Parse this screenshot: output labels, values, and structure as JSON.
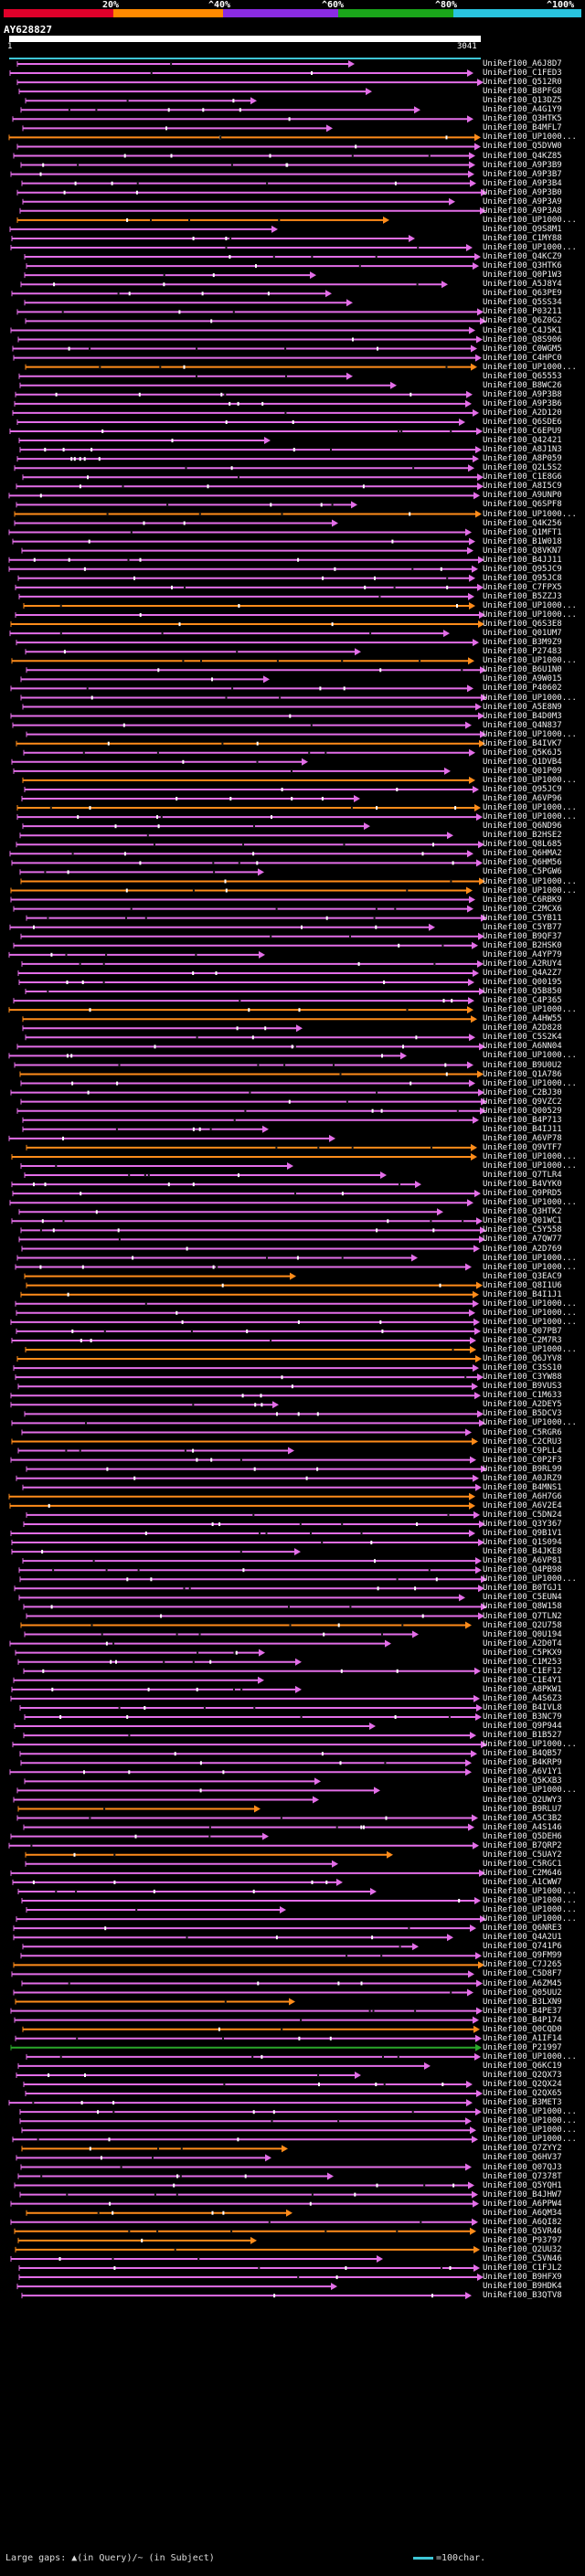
{
  "header": {
    "scale_labels": [
      "20%",
      "^40%",
      "^60%",
      "^80%",
      "^100%"
    ],
    "scale_colors": [
      "#e0002a",
      "#ff8a00",
      "#8a2be2",
      "#1aa51a",
      "#29c4e0"
    ],
    "query_id": "AY628827",
    "query_start": "1",
    "query_end": "3041"
  },
  "colors": {
    "high_identity": "#e36ee8",
    "mid_identity": "#ff8c1a",
    "low_identity": "#2aa82a",
    "query_line": "#3ec6d6",
    "query_bar": "#ffffff"
  },
  "hits": [
    "UniRef100_A6J8D7",
    "UniRef100_C1FED3",
    "UniRef100_Q512R0",
    "UniRef100_B8PFG8",
    "UniRef100_Q13DZ5",
    "UniRef100_A4G1Y9",
    "UniRef100_Q3HTK5",
    "UniRef100_B4MFL7",
    "UniRef100_UP1000...",
    "UniRef100_Q5DVW0",
    "UniRef100_Q4KZ85",
    "UniRef100_A9P3B9",
    "UniRef100_A9P3B7",
    "UniRef100_A9P3B4",
    "UniRef100_A9P3B0",
    "UniRef100_A9P3A9",
    "UniRef100_A9P3A8",
    "UniRef100_UP1000...",
    "UniRef100_Q9S8M1",
    "UniRef100_C1MY88",
    "UniRef100_UP1000...",
    "UniRef100_Q4KCZ9",
    "UniRef100_Q3HTK6",
    "UniRef100_Q0P1W3",
    "UniRef100_A5J8Y4",
    "UniRef100_Q63PE9",
    "UniRef100_Q5SS34",
    "UniRef100_P03211",
    "UniRef100_Q6Z0G2",
    "UniRef100_C4J5K1",
    "UniRef100_Q8S906",
    "UniRef100_C0WGM5",
    "UniRef100_C4HPC0",
    "UniRef100_UP1000...",
    "UniRef100_Q65553",
    "UniRef100_B8WC26",
    "UniRef100_A9P3B8",
    "UniRef100_A9P3B6",
    "UniRef100_A2D120",
    "UniRef100_Q6SDE6",
    "UniRef100_C6EPU9",
    "UniRef100_Q42421",
    "UniRef100_A8J1N3",
    "UniRef100_A8P059",
    "UniRef100_Q2L5S2",
    "UniRef100_C1E8G6",
    "UniRef100_A8I5C9",
    "UniRef100_A9UNP0",
    "UniRef100_Q6SPF8",
    "UniRef100_UP1000...",
    "UniRef100_Q4K256",
    "UniRef100_Q1MFT1",
    "UniRef100_B1W018",
    "UniRef100_Q8VKN7",
    "UniRef100_B4JJ11",
    "UniRef100_Q95JC9",
    "UniRef100_Q95JC8",
    "UniRef100_C7FPX5",
    "UniRef100_B5ZZJ3",
    "UniRef100_UP1000...",
    "UniRef100_UP1000...",
    "UniRef100_Q6S3E8",
    "UniRef100_Q01UM7",
    "UniRef100_B3M9Z9",
    "UniRef100_P27483",
    "UniRef100_UP1000...",
    "UniRef100_B6U1N0",
    "UniRef100_A9W015",
    "UniRef100_P40602",
    "UniRef100_UP1000...",
    "UniRef100_A5E8N9",
    "UniRef100_B4D0M3",
    "UniRef100_Q4N837",
    "UniRef100_UP1000...",
    "UniRef100_B4IVK7",
    "UniRef100_Q5K6J5",
    "UniRef100_Q1DVB4",
    "UniRef100_Q01P09",
    "UniRef100_UP1000...",
    "UniRef100_Q95JC9",
    "UniRef100_A6VP96",
    "UniRef100_UP1000...",
    "UniRef100_UP1000...",
    "UniRef100_Q6ND96",
    "UniRef100_B2HSE2",
    "UniRef100_Q8L685",
    "UniRef100_Q6HMA2",
    "UniRef100_Q6HM56",
    "UniRef100_C5PGW6",
    "UniRef100_UP1000...",
    "UniRef100_UP1000...",
    "UniRef100_C6RBK9",
    "UniRef100_C2MCX6",
    "UniRef100_C5YB11",
    "UniRef100_C5YB77",
    "UniRef100_B9QF37",
    "UniRef100_B2HSK0",
    "UniRef100_A4YP79",
    "UniRef100_A2RUY4",
    "UniRef100_Q4A2Z7",
    "UniRef100_Q00195",
    "UniRef100_Q5B850",
    "UniRef100_C4P365",
    "UniRef100_UP1000...",
    "UniRef100_A4HW55",
    "UniRef100_A2D828",
    "UniRef100_C5S2K4",
    "UniRef100_A6NN04",
    "UniRef100_UP1000...",
    "UniRef100_B9U0U2",
    "UniRef100_Q1A786",
    "UniRef100_UP1000...",
    "UniRef100_C2BJ30",
    "UniRef100_Q9VZC2",
    "UniRef100_Q00529",
    "UniRef100_B4P713",
    "UniRef100_B4IJ11",
    "UniRef100_A6VP78",
    "UniRef100_Q9VTF7",
    "UniRef100_UP1000...",
    "UniRef100_UP1000...",
    "UniRef100_Q7TLR4",
    "UniRef100_B4VYK0",
    "UniRef100_Q9PRD5",
    "UniRef100_UP1000...",
    "UniRef100_Q3HTK2",
    "UniRef100_Q01WC1",
    "UniRef100_C5Y558",
    "UniRef100_A7QW77",
    "UniRef100_A2D769",
    "UniRef100_UP1000...",
    "UniRef100_UP1000...",
    "UniRef100_Q3EAC9",
    "UniRef100_Q8I1U6",
    "UniRef100_B4I1J1",
    "UniRef100_UP1000...",
    "UniRef100_UP1000...",
    "UniRef100_UP1000...",
    "UniRef100_Q07PB7",
    "UniRef100_C2M7R3",
    "UniRef100_UP1000...",
    "UniRef100_Q6JYV8",
    "UniRef100_C3SS10",
    "UniRef100_C3YW88",
    "UniRef100_B9VUS3",
    "UniRef100_C1M633",
    "UniRef100_A2DEY5",
    "UniRef100_B5DCV3",
    "UniRef100_UP1000...",
    "UniRef100_C5RGR6",
    "UniRef100_C2CRU3",
    "UniRef100_C9PLL4",
    "UniRef100_C0P2F3",
    "UniRef100_B9RL99",
    "UniRef100_A0JRZ9",
    "UniRef100_B4MNS1",
    "UniRef100_A6H7G6",
    "UniRef100_A6V2E4",
    "UniRef100_C5DN24",
    "UniRef100_Q3Y367",
    "UniRef100_Q9B1V1",
    "UniRef100_Q1S094",
    "UniRef100_B4JKE8",
    "UniRef100_A6VP81",
    "UniRef100_Q4PB98",
    "UniRef100_UP1000...",
    "UniRef100_B0TGJ1",
    "UniRef100_C5EUN4",
    "UniRef100_Q8W158",
    "UniRef100_Q7TLN2",
    "UniRef100_Q2U758",
    "UniRef100_Q0U194",
    "UniRef100_A2D0T4",
    "UniRef100_C5PKX9",
    "UniRef100_C1M253",
    "UniRef100_C1EF12",
    "UniRef100_C1E4Y1",
    "UniRef100_A8PKW1",
    "UniRef100_A4S6Z3",
    "UniRef100_B4IVL8",
    "UniRef100_B3NC79",
    "UniRef100_Q9P944",
    "UniRef100_B1B527",
    "UniRef100_UP1000...",
    "UniRef100_B4QB57",
    "UniRef100_B4KRP9",
    "UniRef100_A6V1Y1",
    "UniRef100_Q5KXB3",
    "UniRef100_UP1000...",
    "UniRef100_Q2UWY3",
    "UniRef100_B9RLU7",
    "UniRef100_A5C3B2",
    "UniRef100_A4S146",
    "UniRef100_Q5DEH6",
    "UniRef100_B7QRP2",
    "UniRef100_C5UAY2",
    "UniRef100_C5RGC1",
    "UniRef100_C2M646",
    "UniRef100_A1CWW7",
    "UniRef100_UP1000...",
    "UniRef100_UP1000...",
    "UniRef100_UP1000...",
    "UniRef100_UP1000...",
    "UniRef100_Q6NRE3",
    "UniRef100_Q4A2U1",
    "UniRef100_Q741P6",
    "UniRef100_Q9FM99",
    "UniRef100_C7J265",
    "UniRef100_C5D8F7",
    "UniRef100_A6ZM45",
    "UniRef100_Q05UU2",
    "UniRef100_B3LXN9",
    "UniRef100_B4PE37",
    "UniRef100_B4P174",
    "UniRef100_Q0CQD0",
    "UniRef100_A1IF14",
    "UniRef100_P21997",
    "UniRef100_UP1000...",
    "UniRef100_Q6KC19",
    "UniRef100_Q2QX73",
    "UniRef100_Q2QX24",
    "UniRef100_Q2QX65",
    "UniRef100_B3MET3",
    "UniRef100_UP1000...",
    "UniRef100_UP1000...",
    "UniRef100_UP1000...",
    "UniRef100_UP1000...",
    "UniRef100_Q7ZYY2",
    "UniRef100_Q6HV37",
    "UniRef100_Q07QJ3",
    "UniRef100_Q7378T",
    "UniRef100_Q5YQH1",
    "UniRef100_B4JHW7",
    "UniRef100_A6PPW4",
    "UniRef100_A6QM34",
    "UniRef100_A6QI82",
    "UniRef100_Q5VR46",
    "UniRef100_P93797",
    "UniRef100_Q2UU32",
    "UniRef100_C5VN46",
    "UniRef100_C1FJL2",
    "UniRef100_B9HFX9",
    "UniRef100_B9HDK4",
    "UniRef100_B3QTV8"
  ],
  "footer": {
    "gaps_label": "Large gaps: ▲(in Query)/~ (in Subject)",
    "scale_label": "=100char."
  }
}
